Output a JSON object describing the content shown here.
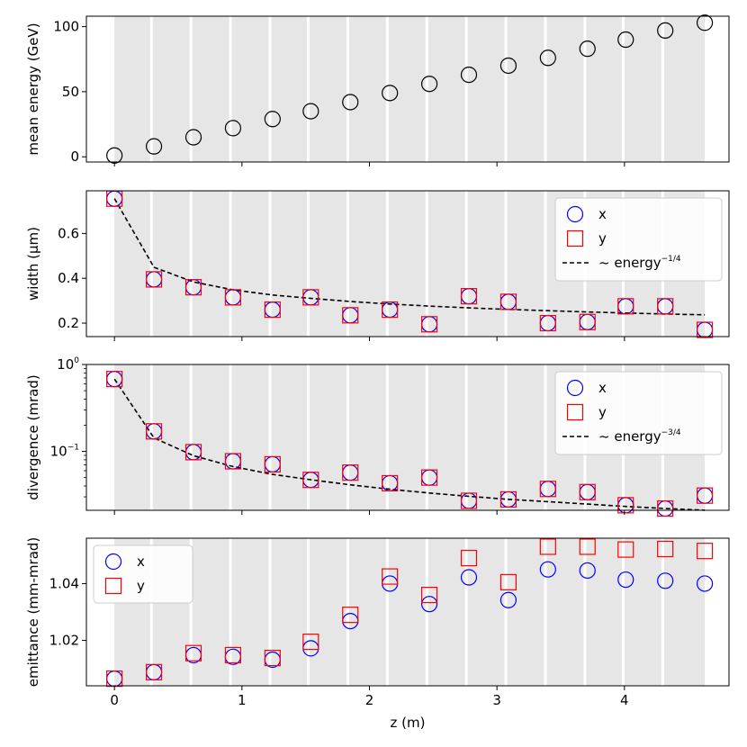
{
  "chart_data": [
    {
      "id": "energy",
      "type": "scatter",
      "ylabel": "mean energy (GeV)",
      "yscale": "linear",
      "ylim": [
        -4,
        108
      ],
      "yticks": [
        0,
        50,
        100
      ],
      "ytick_labels": [
        "0",
        "50",
        "100"
      ],
      "series": [
        {
          "name": "energy",
          "marker": "circle",
          "color": "#000000",
          "values": [
            1,
            8,
            15,
            22,
            29,
            35,
            42,
            49,
            56,
            63,
            70,
            76,
            83,
            90,
            97,
            103
          ]
        }
      ]
    },
    {
      "id": "width",
      "type": "scatter",
      "ylabel": "width (μm)",
      "yscale": "linear",
      "ylim": [
        0.14,
        0.79
      ],
      "yticks": [
        0.2,
        0.4,
        0.6
      ],
      "ytick_labels": [
        "0.2",
        "0.4",
        "0.6"
      ],
      "legend_position": "upper-right",
      "series": [
        {
          "name": "x",
          "marker": "circle",
          "color": "#0000ff",
          "values": [
            0.755,
            0.395,
            0.36,
            0.315,
            0.26,
            0.315,
            0.235,
            0.26,
            0.195,
            0.32,
            0.295,
            0.2,
            0.205,
            0.275,
            0.275,
            0.17
          ]
        },
        {
          "name": "y",
          "marker": "square",
          "color": "#ff0000",
          "values": [
            0.755,
            0.395,
            0.36,
            0.315,
            0.26,
            0.315,
            0.235,
            0.26,
            0.195,
            0.32,
            0.295,
            0.2,
            0.205,
            0.275,
            0.275,
            0.17
          ]
        }
      ],
      "fit": {
        "label_prefix": "~ energy",
        "label_exponent": "−1/4",
        "exponent": -0.25,
        "scale": 0.755
      }
    },
    {
      "id": "divergence",
      "type": "scatter",
      "ylabel": "divergence (mrad)",
      "yscale": "log",
      "ylim": [
        0.021,
        1.0
      ],
      "yticks": [
        0.1,
        1.0
      ],
      "ytick_labels": [
        [
          "10",
          "−1"
        ],
        [
          "10",
          "0"
        ]
      ],
      "legend_position": "upper-right",
      "series": [
        {
          "name": "x",
          "marker": "circle",
          "color": "#0000ff",
          "values": [
            0.68,
            0.17,
            0.098,
            0.077,
            0.071,
            0.047,
            0.057,
            0.043,
            0.05,
            0.027,
            0.028,
            0.037,
            0.034,
            0.024,
            0.022,
            0.031
          ]
        },
        {
          "name": "y",
          "marker": "square",
          "color": "#ff0000",
          "values": [
            0.68,
            0.17,
            0.098,
            0.077,
            0.071,
            0.047,
            0.057,
            0.043,
            0.05,
            0.027,
            0.028,
            0.037,
            0.034,
            0.024,
            0.022,
            0.031
          ]
        }
      ],
      "fit": {
        "label_prefix": "~ energy",
        "label_exponent": "−3/4",
        "exponent": -0.75,
        "scale": 0.68
      }
    },
    {
      "id": "emittance",
      "type": "scatter",
      "ylabel": "emittance (mm-mrad)",
      "xlabel": "z (m)",
      "yscale": "linear",
      "ylim": [
        1.004,
        1.056
      ],
      "yticks": [
        1.02,
        1.04
      ],
      "ytick_labels": [
        "1.02",
        "1.04"
      ],
      "legend_position": "upper-left",
      "series": [
        {
          "name": "x",
          "marker": "circle",
          "color": "#0000ff",
          "values": [
            1.0065,
            1.0088,
            1.0148,
            1.0142,
            1.0132,
            1.0172,
            1.0268,
            1.04,
            1.0328,
            1.0422,
            1.0342,
            1.045,
            1.0446,
            1.0414,
            1.041,
            1.04
          ]
        },
        {
          "name": "y",
          "marker": "square",
          "color": "#ff0000",
          "values": [
            1.0065,
            1.0088,
            1.0155,
            1.0148,
            1.0138,
            1.0195,
            1.029,
            1.0425,
            1.036,
            1.049,
            1.0405,
            1.053,
            1.053,
            1.052,
            1.0522,
            1.0515
          ]
        }
      ]
    }
  ],
  "shared_x": {
    "label": "z (m)",
    "xlim": [
      -0.22,
      4.82
    ],
    "xticks": [
      0,
      1,
      2,
      3,
      4
    ],
    "xtick_labels": [
      "0",
      "1",
      "2",
      "3",
      "4"
    ],
    "points": [
      0,
      0.31,
      0.62,
      0.93,
      1.24,
      1.54,
      1.85,
      2.16,
      2.47,
      2.78,
      3.09,
      3.4,
      3.71,
      4.01,
      4.32,
      4.63
    ]
  },
  "shading": {
    "start": 0,
    "end": 4.63,
    "lines": [
      0.29,
      0.6,
      0.91,
      1.22,
      1.52,
      1.83,
      2.14,
      2.45,
      2.76,
      3.07,
      3.38,
      3.69,
      3.99,
      4.3
    ],
    "fill_color": "#e6e6e6",
    "line_color": "#ffffff"
  }
}
